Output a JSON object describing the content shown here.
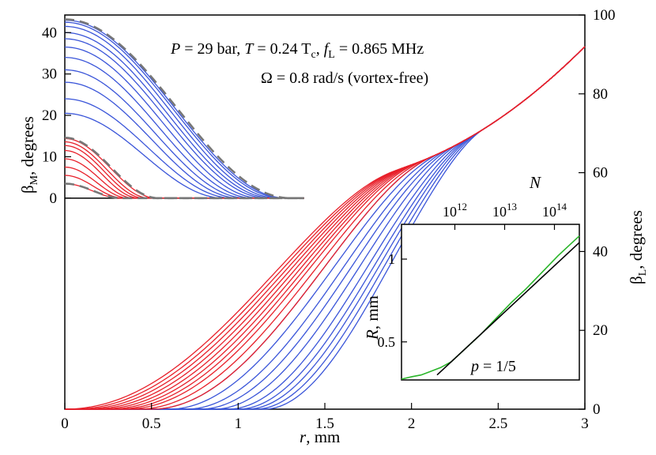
{
  "chart_data": {
    "type": "line",
    "main": {
      "annotation_line1": "P = 29 bar, T = 0.24 Tc, fL = 0.865 MHz",
      "annotation_line2": "Ω = 0.8 rad/s (vortex-free)",
      "annotation_parts": {
        "P": "P",
        "p_rest": " = 29 bar, ",
        "T": "T",
        "t_rest": " = 0.24 T",
        "t_sub": "c",
        "comma": ", ",
        "f": "f",
        "f_sub": "L",
        "f_rest": " = 0.865 MHz",
        "omega": "Ω = 0.8 rad/s (vortex-free)"
      },
      "xlabel": {
        "var": "r",
        "rest": ", mm"
      },
      "ylabel_left": {
        "greek": "β",
        "sub": "M",
        "rest": ", degrees"
      },
      "ylabel_right": {
        "greek": "β",
        "sub": "L",
        "rest": ", degrees"
      },
      "xlim": [
        0,
        3
      ],
      "ylim_left": [
        -51,
        44.25
      ],
      "ylim_right": [
        0,
        100
      ],
      "x_ticks": [
        0,
        0.5,
        1,
        1.5,
        2,
        2.5,
        3
      ],
      "x_tick_labels": [
        "0",
        "0.5",
        "1",
        "1.5",
        "2",
        "2.5",
        "3"
      ],
      "y_left_ticks": [
        0,
        10,
        20,
        30,
        40
      ],
      "y_left_tick_labels": [
        "0",
        "10",
        "20",
        "30",
        "40"
      ],
      "y_right_ticks": [
        0,
        20,
        40,
        60,
        80,
        100
      ],
      "y_right_tick_labels": [
        "0",
        "20",
        "40",
        "60",
        "80",
        "100"
      ],
      "beta_M_red": {
        "color": "#e8202a",
        "amplitudes": [
          3.5,
          5.5,
          7.5,
          9.5,
          11.5,
          12.7,
          13.6,
          14.4
        ],
        "widths": [
          0.32,
          0.34,
          0.37,
          0.4,
          0.43,
          0.46,
          0.49,
          0.53
        ],
        "dashed_envelopes": [
          3.5,
          14.6
        ]
      },
      "beta_M_blue": {
        "color": "#3a55d9",
        "amplitudes": [
          20.5,
          24,
          28,
          31,
          34,
          36.5,
          38.5,
          40,
          41.5,
          42.5,
          43
        ],
        "widths": [
          0.92,
          0.97,
          1.01,
          1.05,
          1.09,
          1.13,
          1.17,
          1.2,
          1.23,
          1.26,
          1.28
        ],
        "dashed_envelopes": [
          43.2
        ]
      },
      "beta_L_red": {
        "color": "#e8202a",
        "onsets": [
          0.0,
          0.05,
          0.1,
          0.15,
          0.2,
          0.25,
          0.3,
          0.35,
          0.42,
          0.5
        ]
      },
      "beta_L_blue": {
        "color": "#3a55d9",
        "onsets": [
          0.5,
          0.6,
          0.7,
          0.78,
          0.86,
          0.94,
          1.0,
          1.05,
          1.1,
          1.15
        ]
      },
      "beta_L_common_path": {
        "r": [
          1.5,
          2.0,
          2.5,
          3.0
        ],
        "beta_L": [
          54,
          62,
          71,
          88
        ]
      }
    },
    "inset": {
      "xlabel": "N",
      "ylabel": {
        "var": "R",
        "rest": ", mm"
      },
      "x_ticks_base": "10",
      "x_ticks_exp": [
        "12",
        "13",
        "14"
      ],
      "y_ticks": [
        0.5,
        1
      ],
      "y_tick_labels": [
        "0.5",
        "1"
      ],
      "ylim": [
        0.27,
        1.21
      ],
      "green_curve": {
        "color": "#2ab52a",
        "x": [
          0,
          0.02,
          0.06,
          0.11,
          0.16,
          0.22,
          0.28,
          0.33,
          0.38,
          0.45,
          0.53,
          0.62,
          0.7,
          0.79,
          0.88,
          0.97,
          1
        ],
        "R": [
          0.275,
          0.28,
          0.29,
          0.3,
          0.32,
          0.345,
          0.38,
          0.43,
          0.48,
          0.55,
          0.64,
          0.74,
          0.82,
          0.92,
          1.02,
          1.11,
          1.14
        ]
      },
      "reference_line": {
        "label_var": "p",
        "label_rest": " = 1/5",
        "x": [
          0.2,
          1
        ],
        "R": [
          0.3,
          1.1
        ],
        "color": "#000000"
      }
    }
  }
}
